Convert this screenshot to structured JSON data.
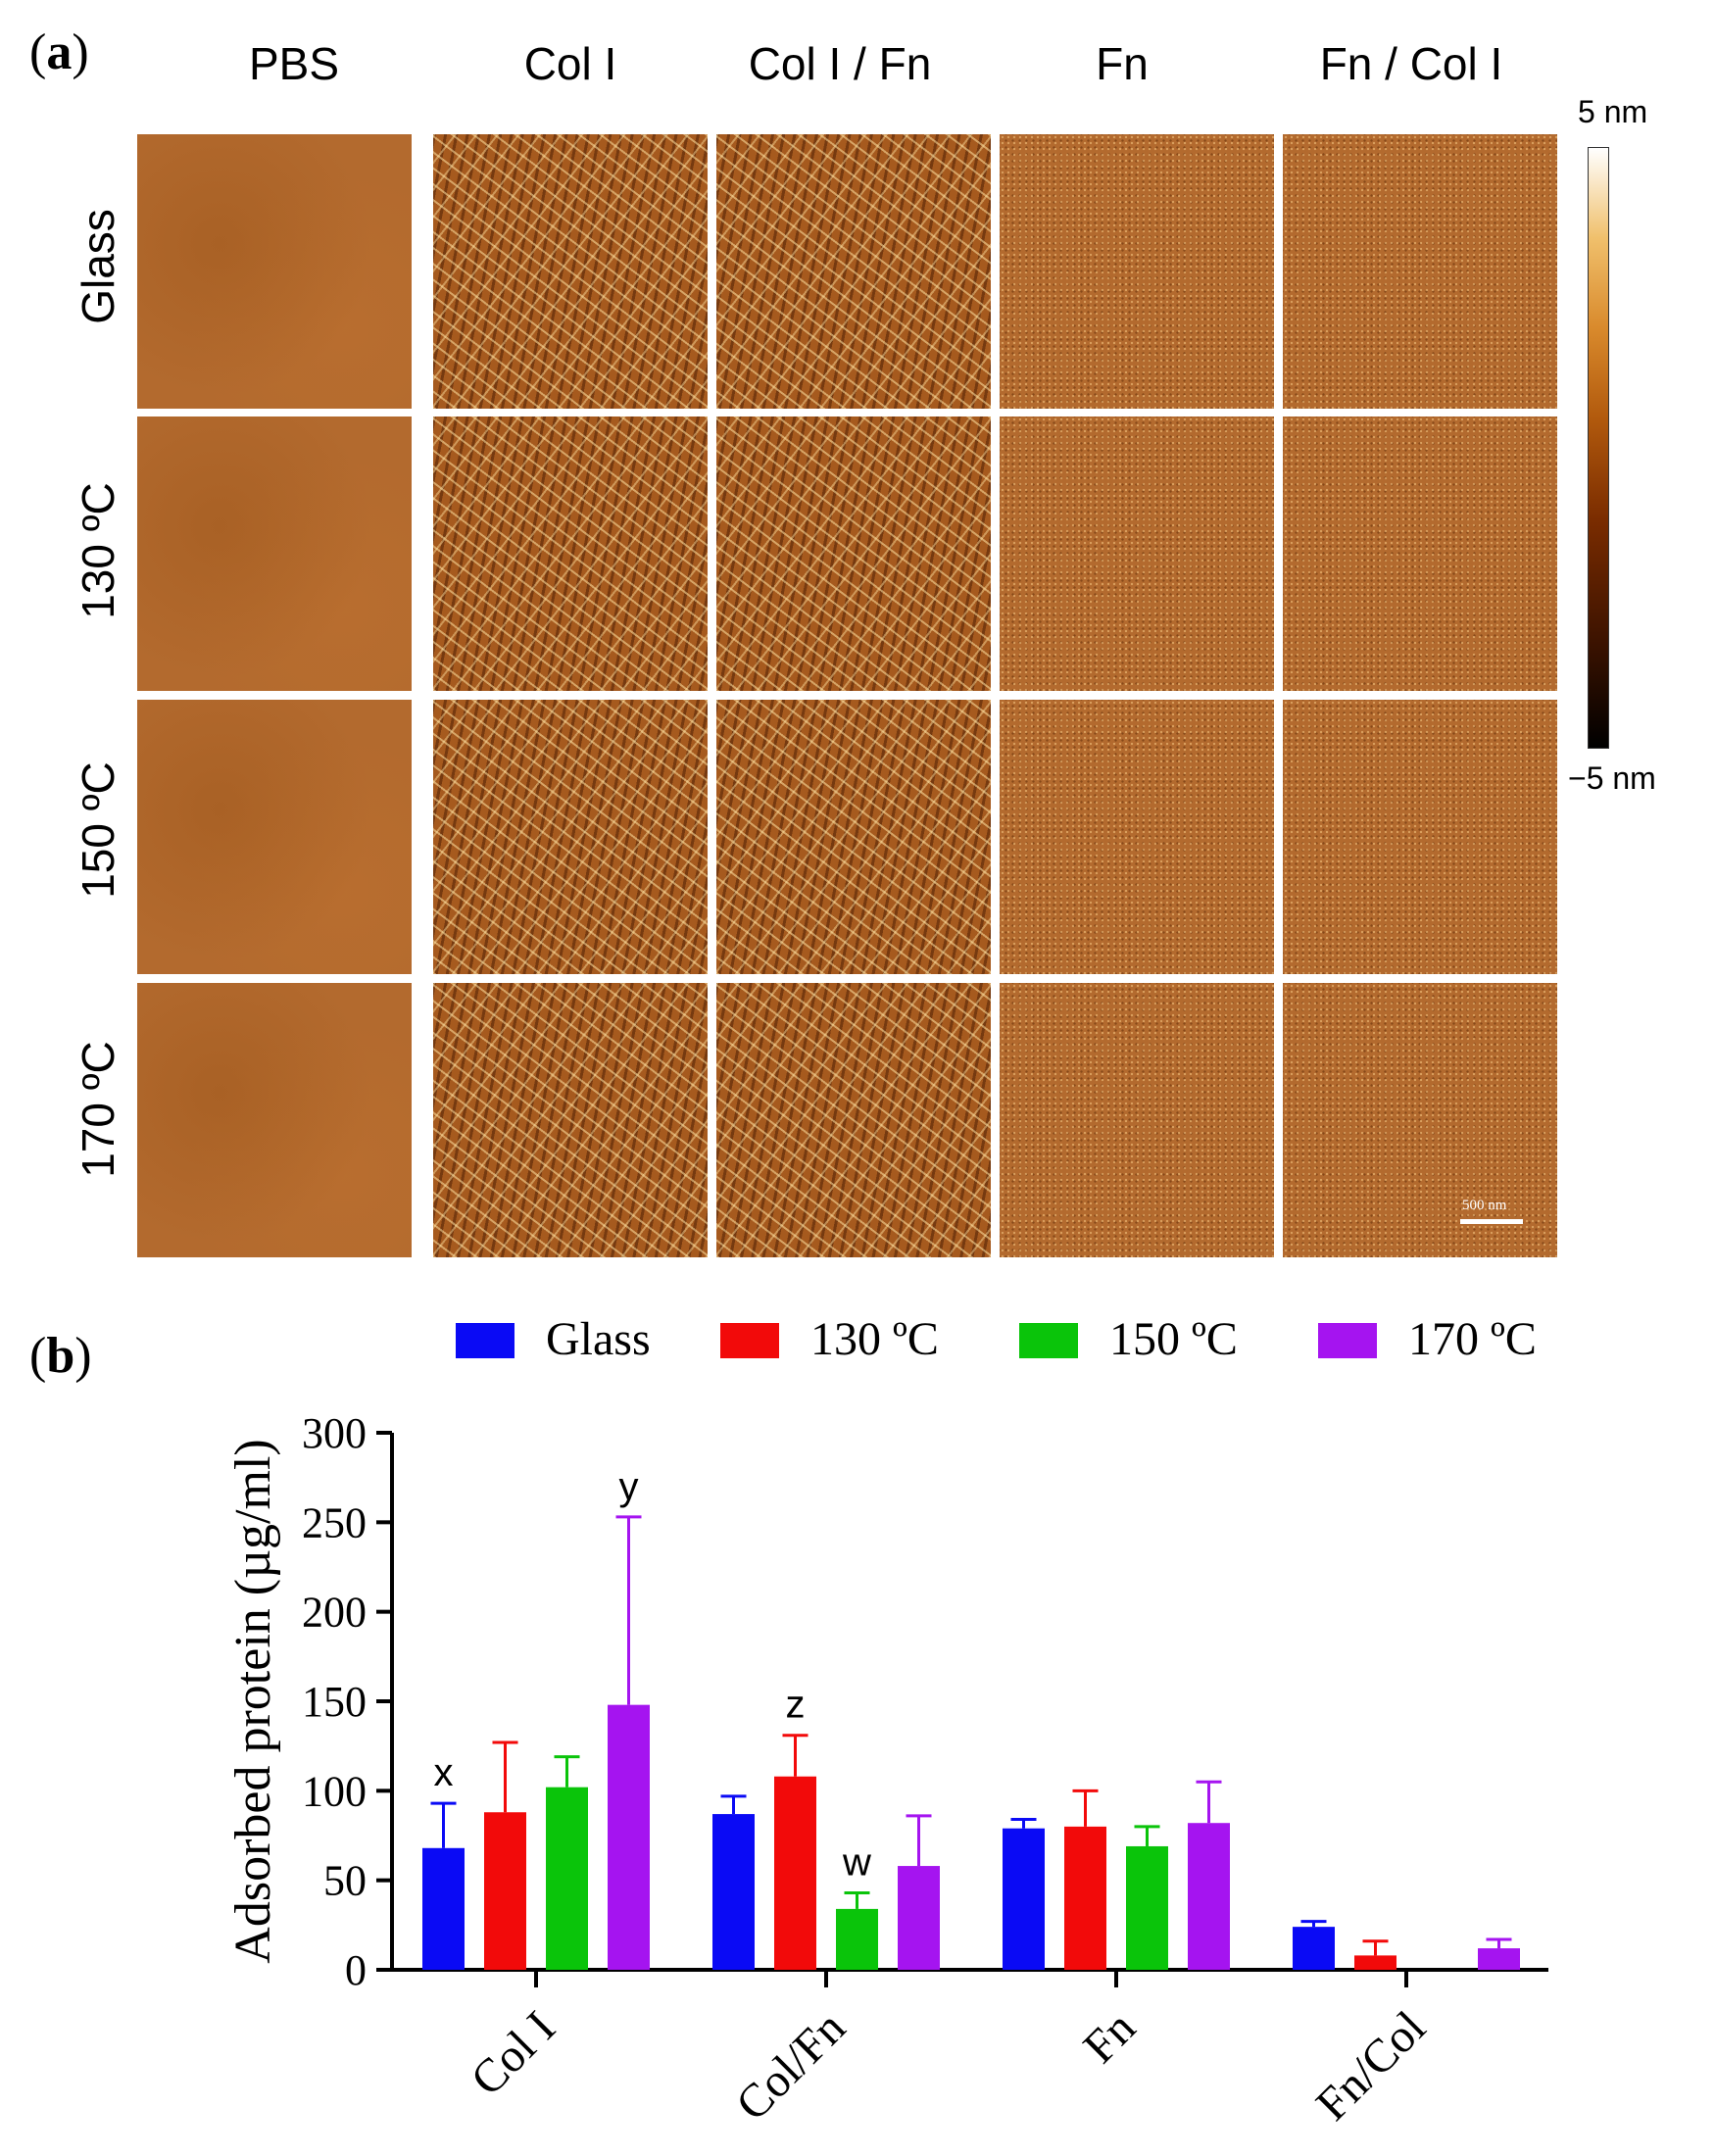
{
  "panel_a": {
    "label": "a",
    "columns": [
      "PBS",
      "Col I",
      "Col I / Fn",
      "Fn",
      "Fn / Col I"
    ],
    "rows": [
      "Glass",
      "130 ºC",
      "150 ºC",
      "170 ºC"
    ],
    "colorbar": {
      "max_label": "5 nm",
      "min_label": "−5 nm"
    },
    "scale_bar_label": "500 nm"
  },
  "panel_b": {
    "label": "b"
  },
  "colors": {
    "Glass": "#0a0af5",
    "130 ºC": "#f20a0a",
    "150 ºC": "#0ac40a",
    "170 ºC": "#a514f0",
    "afm_base": "#b36a2e"
  },
  "chart_data": {
    "type": "bar",
    "title": "",
    "xlabel": "",
    "ylabel": "Adsorbed protein (µg/ml)",
    "ylim": [
      0,
      300
    ],
    "yticks": [
      "0",
      "50",
      "100",
      "150",
      "200",
      "250",
      "300"
    ],
    "categories": [
      "Col I",
      "Col/Fn",
      "Fn",
      "Fn/Col"
    ],
    "legend_position": "top",
    "series": [
      {
        "name": "Glass",
        "values": [
          68,
          87,
          79,
          24
        ],
        "errors": [
          25,
          10,
          5,
          3
        ]
      },
      {
        "name": "130 ºC",
        "values": [
          88,
          108,
          80,
          8
        ],
        "errors": [
          39,
          23,
          20,
          8
        ]
      },
      {
        "name": "150 ºC",
        "values": [
          102,
          34,
          69,
          0
        ],
        "errors": [
          17,
          9,
          11,
          0
        ]
      },
      {
        "name": "170 ºC",
        "values": [
          148,
          58,
          82,
          12
        ],
        "errors": [
          105,
          28,
          23,
          5
        ]
      }
    ],
    "annotations": [
      {
        "text": "x",
        "category": "Col I",
        "series": "Glass"
      },
      {
        "text": "y",
        "category": "Col I",
        "series": "170 ºC"
      },
      {
        "text": "z",
        "category": "Col/Fn",
        "series": "130 ºC"
      },
      {
        "text": "w",
        "category": "Col/Fn",
        "series": "150 ºC"
      }
    ]
  }
}
